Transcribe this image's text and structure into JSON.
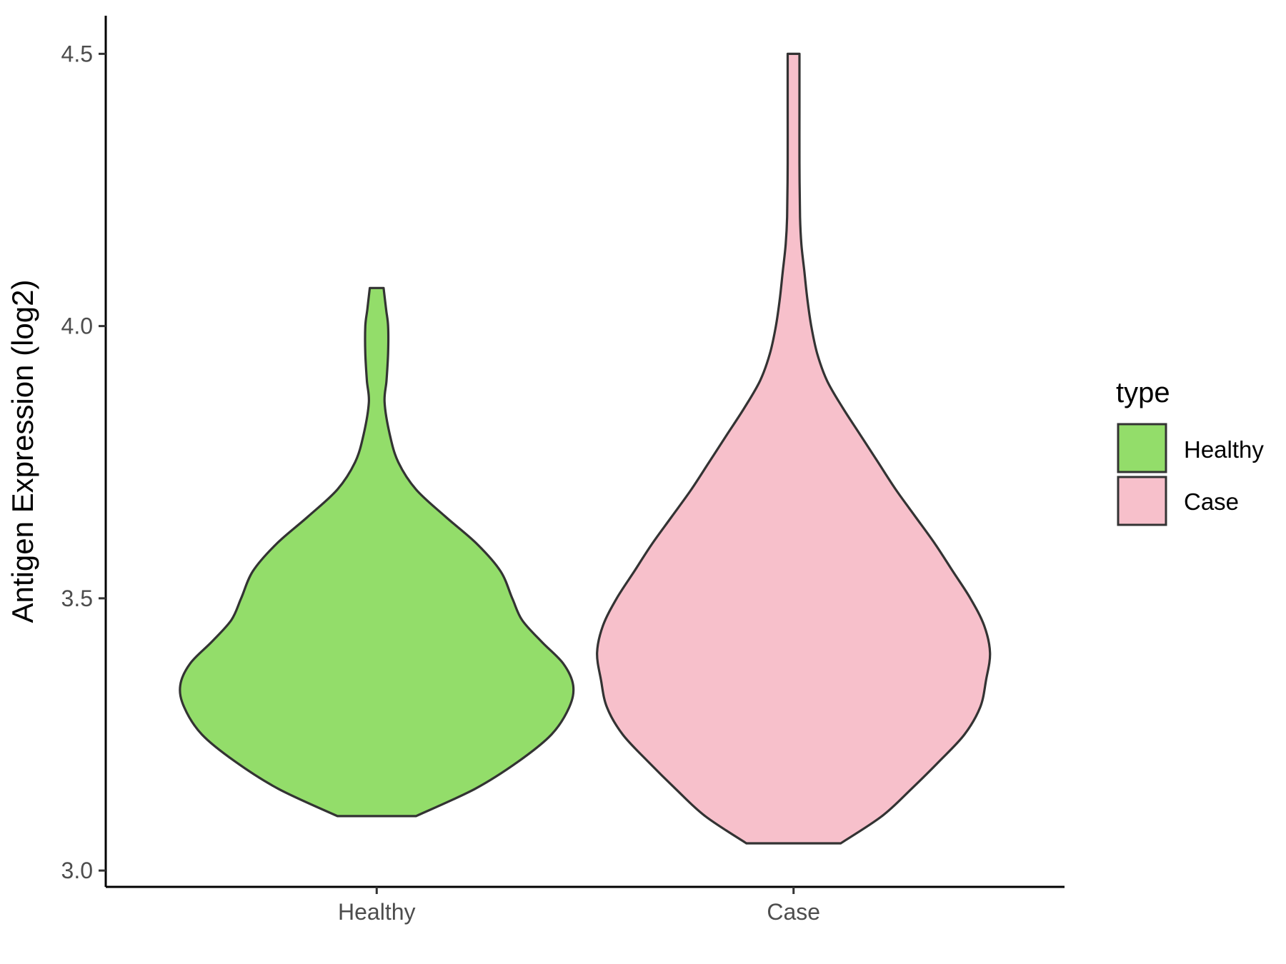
{
  "chart_data": {
    "type": "violin",
    "title": "",
    "xlabel": "",
    "ylabel": "Antigen Expression (log2)",
    "ylim": [
      2.97,
      4.57
    ],
    "yticks": [
      3.0,
      3.5,
      4.0,
      4.5
    ],
    "ytick_labels": [
      "3.0",
      "3.5",
      "4.0",
      "4.5"
    ],
    "categories": [
      "Healthy",
      "Case"
    ],
    "grid": false,
    "legend": {
      "title": "type",
      "placement": "right",
      "entries": [
        "Healthy",
        "Case"
      ]
    },
    "series": [
      {
        "name": "Healthy",
        "color": "#93dd6a",
        "min": 3.1,
        "max": 4.07,
        "density_profile": [
          [
            3.1,
            0.2
          ],
          [
            3.15,
            0.5
          ],
          [
            3.2,
            0.72
          ],
          [
            3.25,
            0.89
          ],
          [
            3.3,
            0.98
          ],
          [
            3.34,
            1.0
          ],
          [
            3.38,
            0.95
          ],
          [
            3.42,
            0.84
          ],
          [
            3.46,
            0.74
          ],
          [
            3.5,
            0.69
          ],
          [
            3.55,
            0.63
          ],
          [
            3.6,
            0.51
          ],
          [
            3.65,
            0.35
          ],
          [
            3.7,
            0.2
          ],
          [
            3.75,
            0.11
          ],
          [
            3.8,
            0.067
          ],
          [
            3.86,
            0.04
          ],
          [
            3.9,
            0.05
          ],
          [
            3.95,
            0.058
          ],
          [
            4.0,
            0.058
          ],
          [
            4.03,
            0.048
          ],
          [
            4.07,
            0.035
          ]
        ]
      },
      {
        "name": "Case",
        "color": "#f7c0cb",
        "min": 3.05,
        "max": 4.5,
        "density_profile": [
          [
            3.05,
            0.24
          ],
          [
            3.1,
            0.45
          ],
          [
            3.15,
            0.6
          ],
          [
            3.2,
            0.74
          ],
          [
            3.25,
            0.87
          ],
          [
            3.3,
            0.95
          ],
          [
            3.35,
            0.98
          ],
          [
            3.4,
            1.0
          ],
          [
            3.45,
            0.97
          ],
          [
            3.5,
            0.9
          ],
          [
            3.55,
            0.81
          ],
          [
            3.6,
            0.72
          ],
          [
            3.65,
            0.62
          ],
          [
            3.7,
            0.52
          ],
          [
            3.75,
            0.43
          ],
          [
            3.8,
            0.34
          ],
          [
            3.85,
            0.25
          ],
          [
            3.9,
            0.17
          ],
          [
            3.95,
            0.12
          ],
          [
            4.0,
            0.09
          ],
          [
            4.05,
            0.07
          ],
          [
            4.1,
            0.055
          ],
          [
            4.15,
            0.04
          ],
          [
            4.2,
            0.033
          ],
          [
            4.3,
            0.03
          ],
          [
            4.4,
            0.03
          ],
          [
            4.5,
            0.03
          ]
        ]
      }
    ]
  }
}
